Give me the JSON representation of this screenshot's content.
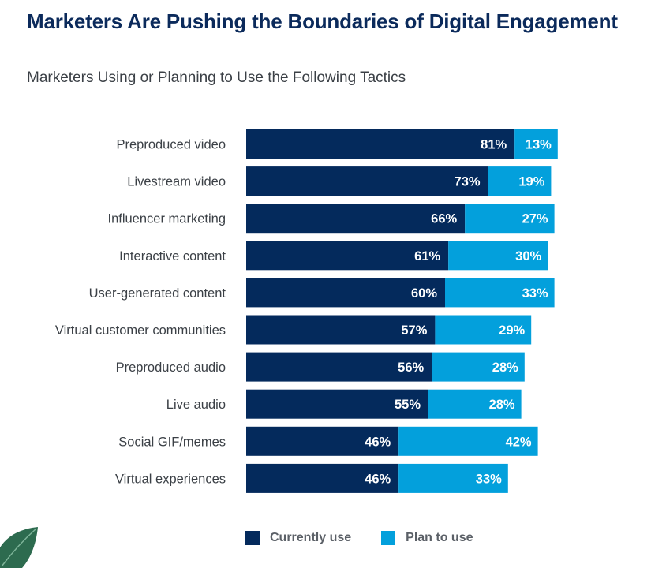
{
  "page": {
    "title": "Marketers Are Pushing the Boundaries of Digital Engagement",
    "subtitle": "Marketers Using or Planning to Use the Following Tactics"
  },
  "colors": {
    "current": "#042a5c",
    "plan": "#03a0dc",
    "title": "#0b2a5b",
    "leaf": "#2d6b4f"
  },
  "chart_data": {
    "type": "bar",
    "orientation": "horizontal",
    "stacked": true,
    "categories": [
      "Preproduced video",
      "Livestream video",
      "Influencer marketing",
      "Interactive content",
      "User-generated content",
      "Virtual customer communities",
      "Preproduced audio",
      "Live audio",
      "Social GIF/memes",
      "Virtual experiences"
    ],
    "series": [
      {
        "name": "Currently use",
        "values": [
          81,
          73,
          66,
          61,
          60,
          57,
          56,
          55,
          46,
          46
        ],
        "labels": [
          "81%",
          "73%",
          "66%",
          "61%",
          "60%",
          "57%",
          "56%",
          "55%",
          "46%",
          "46%"
        ]
      },
      {
        "name": "Plan to use",
        "values": [
          13,
          19,
          27,
          30,
          33,
          29,
          28,
          28,
          42,
          33
        ],
        "labels": [
          "13%",
          "19%",
          "27%",
          "30%",
          "33%",
          "29%",
          "28%",
          "28%",
          "42%",
          "33%"
        ]
      }
    ],
    "title": "Marketers Using or Planning to Use the Following Tactics",
    "xlabel": "",
    "ylabel": "",
    "xlim": [
      0,
      100
    ],
    "grid": false,
    "legend_position": "bottom"
  },
  "legend": {
    "current_label": "Currently use",
    "plan_label": "Plan to use"
  }
}
